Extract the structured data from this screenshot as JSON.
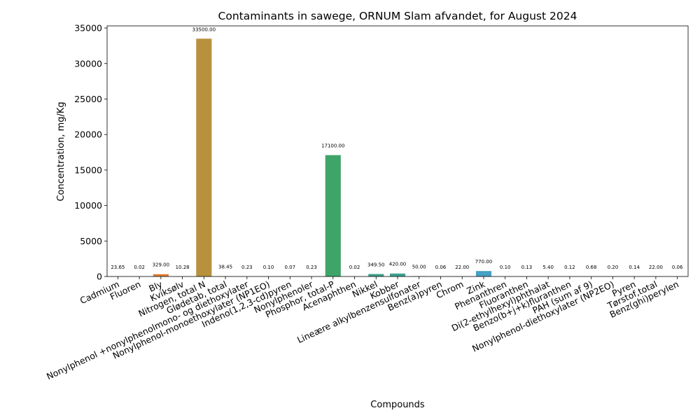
{
  "chart_data": {
    "type": "bar",
    "title": "Contaminants in sawege, ORNUM Slam afvandet, for August 2024",
    "xlabel": "Compounds",
    "ylabel": "Concentration, mg/Kg",
    "ylim": [
      0,
      35300
    ],
    "yticks": [
      0,
      5000,
      10000,
      15000,
      20000,
      25000,
      30000,
      35000
    ],
    "grid": false,
    "legend": "none",
    "categories": [
      "Cadmium",
      "Fluoren",
      "Bly",
      "Kviksølv",
      "Nitrogen, total N",
      "Glødetab, total",
      "Nonylphenol +nonylphenolmono- og diethoxylater",
      "Nonylphenol-monoethoxylater (NP1EO)",
      "Indeno(1,2,3-cd)pyren",
      "Nonylphenoler",
      "Phosphor, total-P",
      "Acenaphthen",
      "Nikkel",
      "Kobber",
      "Lineære alkylbenzensulfonater",
      "Benz(a)pyren",
      "Chrom",
      "Zink",
      "Phenanthren",
      "Fluoranthen",
      "Di(2-ethylhexyl)phthalat",
      "Benzo(b+j+k)fluranthen",
      "PAH (sum af 9)",
      "Nonylphenol-diethoxylater (NP2EO)",
      "Pyren",
      "Tørstof,total",
      "Benz(ghi)perylen"
    ],
    "values": [
      23.65,
      0.02,
      329.0,
      10.28,
      33500.0,
      38.45,
      0.23,
      0.1,
      0.07,
      0.23,
      17100.0,
      0.02,
      349.5,
      420.0,
      50.0,
      0.06,
      22.0,
      770.0,
      0.1,
      0.13,
      5.4,
      0.12,
      0.68,
      0.2,
      0.14,
      22.0,
      0.06
    ],
    "value_labels": [
      "23.65",
      "0.02",
      "329.00",
      "10.28",
      "33500.00",
      "38.45",
      "0.23",
      "0.10",
      "0.07",
      "0.23",
      "17100.00",
      "0.02",
      "349.50",
      "420.00",
      "50.00",
      "0.06",
      "22.00",
      "770.00",
      "0.10",
      "0.13",
      "5.40",
      "0.12",
      "0.68",
      "0.20",
      "0.14",
      "22.00",
      "0.06"
    ],
    "colors": [
      "#e8697b",
      "#e67a49",
      "#dc7d33",
      "#c88d38",
      "#b8913f",
      "#a29a3e",
      "#8f9c3c",
      "#7ca13d",
      "#5ca43d",
      "#3fa74e",
      "#3fa46a",
      "#3ea47d",
      "#3da28a",
      "#3ea193",
      "#3fa09e",
      "#41a0a9",
      "#42a0b4",
      "#46a1c4",
      "#56a2dd",
      "#7f9ce5",
      "#a495e5",
      "#bd8ae3",
      "#d27de3",
      "#e26fd8",
      "#e670c4",
      "#e873ad",
      "#ea7694"
    ]
  }
}
